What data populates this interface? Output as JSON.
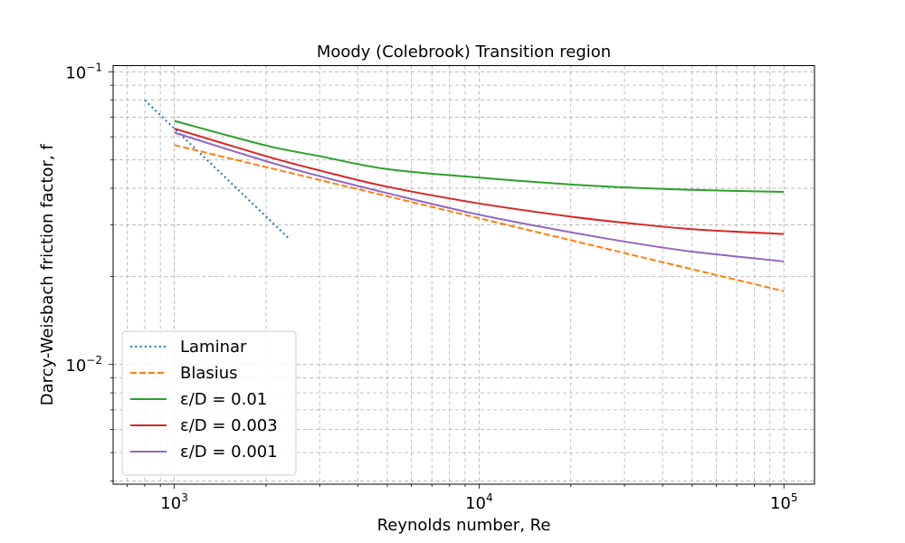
{
  "chart_data": {
    "type": "line",
    "title": "Moody (Colebrook) Transition region",
    "xlabel": "Reynolds number, Re",
    "ylabel": "Darcy-Weisbach friction factor, f",
    "xscale": "log",
    "yscale": "log",
    "xlim": [
      630,
      126000
    ],
    "ylim": [
      0.0039,
      0.105
    ],
    "x_ticks": [
      {
        "value": 1000,
        "base": "10",
        "exp": "3"
      },
      {
        "value": 10000,
        "base": "10",
        "exp": "4"
      },
      {
        "value": 100000,
        "base": "10",
        "exp": "5"
      }
    ],
    "y_ticks": [
      {
        "value": 0.01,
        "base": "10",
        "exp": "−2"
      },
      {
        "value": 0.1,
        "base": "10",
        "exp": "−1"
      }
    ],
    "grid": true,
    "legend": {
      "position": "lower-left"
    },
    "series": [
      {
        "name": "Laminar",
        "color": "#1f77b4",
        "style": "dotted",
        "points": [
          [
            800,
            0.08
          ],
          [
            2400,
            0.0267
          ]
        ]
      },
      {
        "name": "Blasius",
        "color": "#ff7f0e",
        "style": "dashed",
        "points": [
          [
            1000,
            0.0562
          ],
          [
            10000,
            0.0316
          ],
          [
            100000,
            0.0178
          ]
        ]
      },
      {
        "name": "ε/D = 0.01",
        "color": "#2ca02c",
        "style": "solid",
        "points": [
          [
            1000,
            0.068
          ],
          [
            2000,
            0.056
          ],
          [
            3000,
            0.0515
          ],
          [
            5000,
            0.0465
          ],
          [
            10000,
            0.0435
          ],
          [
            20000,
            0.0412
          ],
          [
            30000,
            0.0403
          ],
          [
            50000,
            0.0395
          ],
          [
            100000,
            0.0389
          ]
        ]
      },
      {
        "name": "ε/D = 0.003",
        "color": "#d62728",
        "style": "solid",
        "points": [
          [
            1000,
            0.064
          ],
          [
            2000,
            0.0515
          ],
          [
            3000,
            0.046
          ],
          [
            5000,
            0.0405
          ],
          [
            10000,
            0.0355
          ],
          [
            20000,
            0.032
          ],
          [
            30000,
            0.0305
          ],
          [
            50000,
            0.029
          ],
          [
            100000,
            0.0279
          ]
        ]
      },
      {
        "name": "ε/D = 0.001",
        "color": "#9467bd",
        "style": "solid",
        "points": [
          [
            1000,
            0.062
          ],
          [
            2000,
            0.0495
          ],
          [
            3000,
            0.044
          ],
          [
            5000,
            0.0385
          ],
          [
            10000,
            0.0325
          ],
          [
            20000,
            0.0283
          ],
          [
            30000,
            0.0263
          ],
          [
            50000,
            0.0243
          ],
          [
            100000,
            0.0225
          ]
        ]
      }
    ]
  }
}
